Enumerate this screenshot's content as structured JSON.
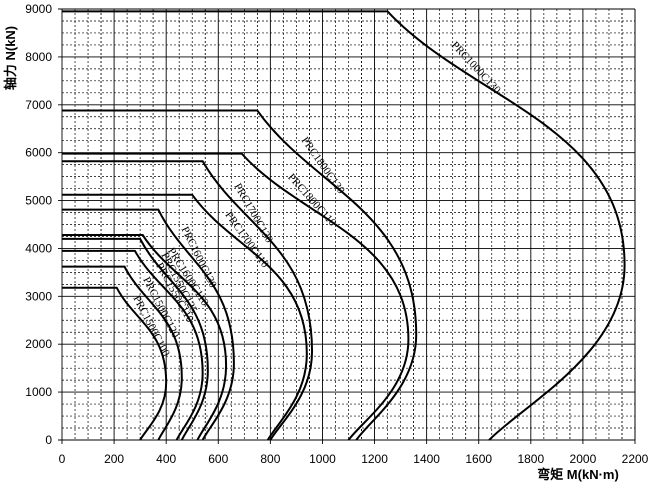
{
  "chart_data": {
    "type": "line",
    "xlabel": "弯矩 M(kN·m)",
    "ylabel": "轴力 N(kN)",
    "xlim": [
      0,
      2200
    ],
    "ylim": [
      0,
      9000
    ],
    "xticks": [
      0,
      200,
      400,
      600,
      800,
      1000,
      1200,
      1400,
      1600,
      1800,
      2000,
      2200
    ],
    "yticks": [
      0,
      1000,
      2000,
      3000,
      4000,
      5000,
      6000,
      7000,
      8000,
      9000
    ],
    "grid": true,
    "series": [
      {
        "name": "PRC1000C130",
        "N_max": 8950,
        "M_at_N_max": 1250,
        "M_at_N_zero": 1640,
        "M_peak": 2160,
        "N_at_M_peak": 3650
      },
      {
        "name": "PRC1800C130",
        "N_max": 6880,
        "M_at_N_max": 750,
        "M_at_N_zero": 1130,
        "M_peak": 1360,
        "N_at_M_peak": 2200
      },
      {
        "name": "PRC1800C110",
        "N_max": 5980,
        "M_at_N_max": 690,
        "M_at_N_zero": 1100,
        "M_peak": 1330,
        "N_at_M_peak": 2100
      },
      {
        "name": "PRC1700C130",
        "N_max": 5820,
        "M_at_N_max": 540,
        "M_at_N_zero": 800,
        "M_peak": 960,
        "N_at_M_peak": 1850
      },
      {
        "name": "PRC1700C110",
        "N_max": 5120,
        "M_at_N_max": 500,
        "M_at_N_zero": 790,
        "M_peak": 940,
        "N_at_M_peak": 1800
      },
      {
        "name": "PRC1600C130",
        "N_max": 4810,
        "M_at_N_max": 370,
        "M_at_N_zero": 540,
        "M_peak": 660,
        "N_at_M_peak": 1600
      },
      {
        "name": "PRC1600C110",
        "N_max": 4280,
        "M_at_N_max": 310,
        "M_at_N_zero": 520,
        "M_peak": 630,
        "N_at_M_peak": 1550
      },
      {
        "name": "PRC1550C125",
        "N_max": 4200,
        "M_at_N_max": 300,
        "M_at_N_zero": 460,
        "M_peak": 560,
        "N_at_M_peak": 1450
      },
      {
        "name": "PRC1550C110",
        "N_max": 3950,
        "M_at_N_max": 280,
        "M_at_N_zero": 440,
        "M_peak": 540,
        "N_at_M_peak": 1400
      },
      {
        "name": "PRC1500C120",
        "N_max": 3620,
        "M_at_N_max": 240,
        "M_at_N_zero": 370,
        "M_peak": 460,
        "N_at_M_peak": 1300
      },
      {
        "name": "PRC1500C100",
        "N_max": 3180,
        "M_at_N_max": 210,
        "M_at_N_zero": 300,
        "M_peak": 400,
        "N_at_M_peak": 1200
      }
    ]
  }
}
